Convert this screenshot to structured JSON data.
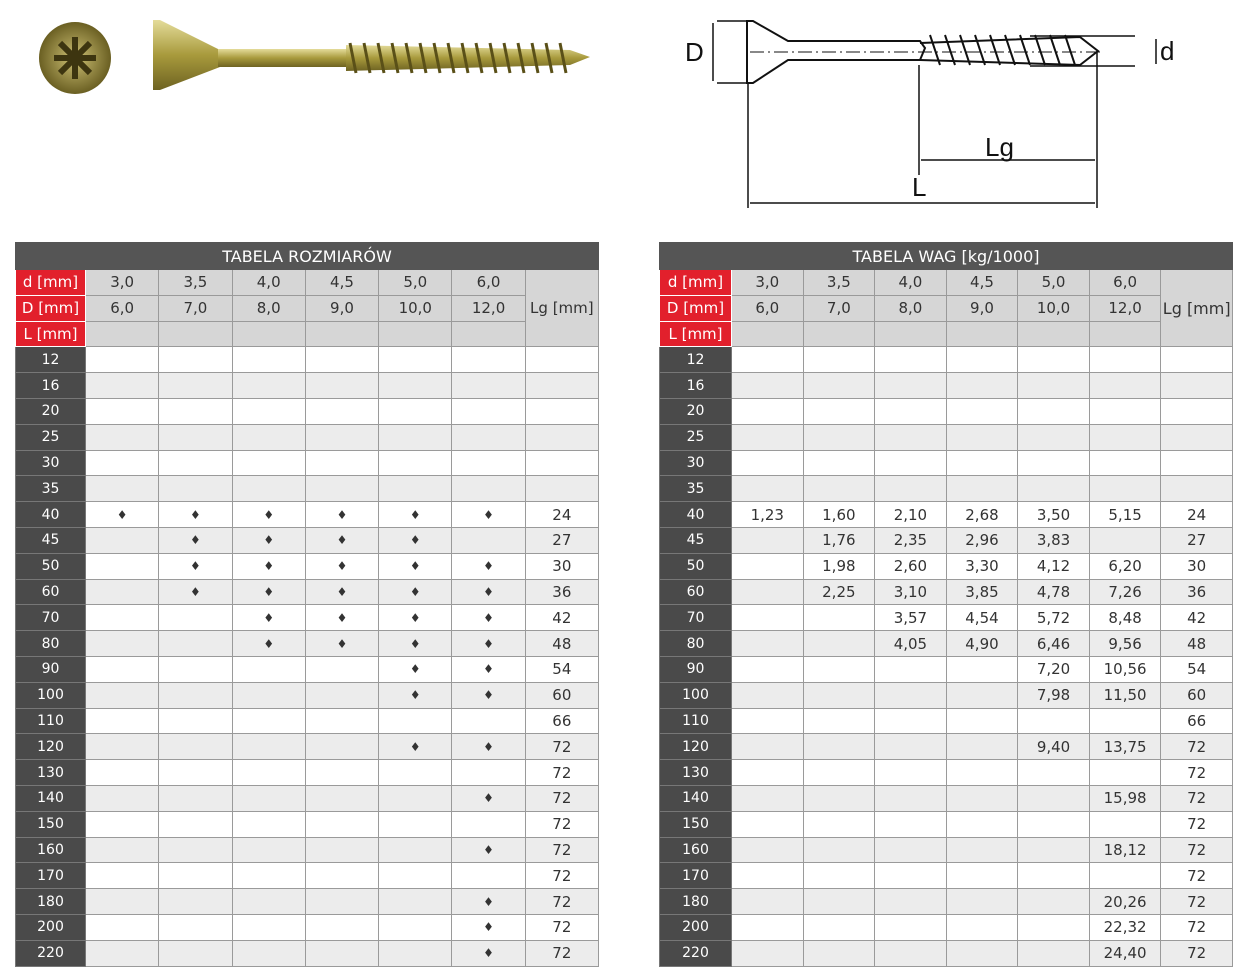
{
  "diagram": {
    "label_D": "D",
    "label_d": "d",
    "label_Lg": "Lg",
    "label_L": "L"
  },
  "size_table": {
    "title": "TABELA ROZMIARÓW",
    "row_labels": [
      "d [mm]",
      "D [mm]",
      "L [mm]"
    ],
    "d_values": [
      "3,0",
      "3,5",
      "4,0",
      "4,5",
      "5,0",
      "6,0"
    ],
    "D_values": [
      "6,0",
      "7,0",
      "8,0",
      "9,0",
      "10,0",
      "12,0"
    ],
    "lg_header": "Lg [mm]",
    "mark": "♦",
    "rows": [
      {
        "L": "12",
        "avail": [
          0,
          0,
          0,
          0,
          0,
          0
        ],
        "Lg": ""
      },
      {
        "L": "16",
        "avail": [
          0,
          0,
          0,
          0,
          0,
          0
        ],
        "Lg": ""
      },
      {
        "L": "20",
        "avail": [
          0,
          0,
          0,
          0,
          0,
          0
        ],
        "Lg": ""
      },
      {
        "L": "25",
        "avail": [
          0,
          0,
          0,
          0,
          0,
          0
        ],
        "Lg": ""
      },
      {
        "L": "30",
        "avail": [
          0,
          0,
          0,
          0,
          0,
          0
        ],
        "Lg": ""
      },
      {
        "L": "35",
        "avail": [
          0,
          0,
          0,
          0,
          0,
          0
        ],
        "Lg": ""
      },
      {
        "L": "40",
        "avail": [
          1,
          1,
          1,
          1,
          1,
          1
        ],
        "Lg": "24"
      },
      {
        "L": "45",
        "avail": [
          0,
          1,
          1,
          1,
          1,
          0
        ],
        "Lg": "27"
      },
      {
        "L": "50",
        "avail": [
          0,
          1,
          1,
          1,
          1,
          1
        ],
        "Lg": "30"
      },
      {
        "L": "60",
        "avail": [
          0,
          1,
          1,
          1,
          1,
          1
        ],
        "Lg": "36"
      },
      {
        "L": "70",
        "avail": [
          0,
          0,
          1,
          1,
          1,
          1
        ],
        "Lg": "42"
      },
      {
        "L": "80",
        "avail": [
          0,
          0,
          1,
          1,
          1,
          1
        ],
        "Lg": "48"
      },
      {
        "L": "90",
        "avail": [
          0,
          0,
          0,
          0,
          1,
          1
        ],
        "Lg": "54"
      },
      {
        "L": "100",
        "avail": [
          0,
          0,
          0,
          0,
          1,
          1
        ],
        "Lg": "60"
      },
      {
        "L": "110",
        "avail": [
          0,
          0,
          0,
          0,
          0,
          0
        ],
        "Lg": "66"
      },
      {
        "L": "120",
        "avail": [
          0,
          0,
          0,
          0,
          1,
          1
        ],
        "Lg": "72"
      },
      {
        "L": "130",
        "avail": [
          0,
          0,
          0,
          0,
          0,
          0
        ],
        "Lg": "72"
      },
      {
        "L": "140",
        "avail": [
          0,
          0,
          0,
          0,
          0,
          1
        ],
        "Lg": "72"
      },
      {
        "L": "150",
        "avail": [
          0,
          0,
          0,
          0,
          0,
          0
        ],
        "Lg": "72"
      },
      {
        "L": "160",
        "avail": [
          0,
          0,
          0,
          0,
          0,
          1
        ],
        "Lg": "72"
      },
      {
        "L": "170",
        "avail": [
          0,
          0,
          0,
          0,
          0,
          0
        ],
        "Lg": "72"
      },
      {
        "L": "180",
        "avail": [
          0,
          0,
          0,
          0,
          0,
          1
        ],
        "Lg": "72"
      },
      {
        "L": "200",
        "avail": [
          0,
          0,
          0,
          0,
          0,
          1
        ],
        "Lg": "72"
      },
      {
        "L": "220",
        "avail": [
          0,
          0,
          0,
          0,
          0,
          1
        ],
        "Lg": "72"
      }
    ]
  },
  "weight_table": {
    "title": "TABELA WAG [kg/1000]",
    "row_labels": [
      "d [mm]",
      "D [mm]",
      "L [mm]"
    ],
    "d_values": [
      "3,0",
      "3,5",
      "4,0",
      "4,5",
      "5,0",
      "6,0"
    ],
    "D_values": [
      "6,0",
      "7,0",
      "8,0",
      "9,0",
      "10,0",
      "12,0"
    ],
    "lg_header": "Lg [mm]",
    "rows": [
      {
        "L": "12",
        "w": [
          "",
          "",
          "",
          "",
          "",
          ""
        ],
        "Lg": ""
      },
      {
        "L": "16",
        "w": [
          "",
          "",
          "",
          "",
          "",
          ""
        ],
        "Lg": ""
      },
      {
        "L": "20",
        "w": [
          "",
          "",
          "",
          "",
          "",
          ""
        ],
        "Lg": ""
      },
      {
        "L": "25",
        "w": [
          "",
          "",
          "",
          "",
          "",
          ""
        ],
        "Lg": ""
      },
      {
        "L": "30",
        "w": [
          "",
          "",
          "",
          "",
          "",
          ""
        ],
        "Lg": ""
      },
      {
        "L": "35",
        "w": [
          "",
          "",
          "",
          "",
          "",
          ""
        ],
        "Lg": ""
      },
      {
        "L": "40",
        "w": [
          "1,23",
          "1,60",
          "2,10",
          "2,68",
          "3,50",
          "5,15"
        ],
        "Lg": "24"
      },
      {
        "L": "45",
        "w": [
          "",
          "1,76",
          "2,35",
          "2,96",
          "3,83",
          ""
        ],
        "Lg": "27"
      },
      {
        "L": "50",
        "w": [
          "",
          "1,98",
          "2,60",
          "3,30",
          "4,12",
          "6,20"
        ],
        "Lg": "30"
      },
      {
        "L": "60",
        "w": [
          "",
          "2,25",
          "3,10",
          "3,85",
          "4,78",
          "7,26"
        ],
        "Lg": "36"
      },
      {
        "L": "70",
        "w": [
          "",
          "",
          "3,57",
          "4,54",
          "5,72",
          "8,48"
        ],
        "Lg": "42"
      },
      {
        "L": "80",
        "w": [
          "",
          "",
          "4,05",
          "4,90",
          "6,46",
          "9,56"
        ],
        "Lg": "48"
      },
      {
        "L": "90",
        "w": [
          "",
          "",
          "",
          "",
          "7,20",
          "10,56"
        ],
        "Lg": "54"
      },
      {
        "L": "100",
        "w": [
          "",
          "",
          "",
          "",
          "7,98",
          "11,50"
        ],
        "Lg": "60"
      },
      {
        "L": "110",
        "w": [
          "",
          "",
          "",
          "",
          "",
          ""
        ],
        "Lg": "66"
      },
      {
        "L": "120",
        "w": [
          "",
          "",
          "",
          "",
          "9,40",
          "13,75"
        ],
        "Lg": "72"
      },
      {
        "L": "130",
        "w": [
          "",
          "",
          "",
          "",
          "",
          ""
        ],
        "Lg": "72"
      },
      {
        "L": "140",
        "w": [
          "",
          "",
          "",
          "",
          "",
          "15,98"
        ],
        "Lg": "72"
      },
      {
        "L": "150",
        "w": [
          "",
          "",
          "",
          "",
          "",
          ""
        ],
        "Lg": "72"
      },
      {
        "L": "160",
        "w": [
          "",
          "",
          "",
          "",
          "",
          "18,12"
        ],
        "Lg": "72"
      },
      {
        "L": "170",
        "w": [
          "",
          "",
          "",
          "",
          "",
          ""
        ],
        "Lg": "72"
      },
      {
        "L": "180",
        "w": [
          "",
          "",
          "",
          "",
          "",
          "20,26"
        ],
        "Lg": "72"
      },
      {
        "L": "200",
        "w": [
          "",
          "",
          "",
          "",
          "",
          "22,32"
        ],
        "Lg": "72"
      },
      {
        "L": "220",
        "w": [
          "",
          "",
          "",
          "",
          "",
          "24,40"
        ],
        "Lg": "72"
      }
    ]
  },
  "colors": {
    "red": "#e2202c",
    "dark": "#4a4a4a",
    "screw": "#b5a94a"
  }
}
